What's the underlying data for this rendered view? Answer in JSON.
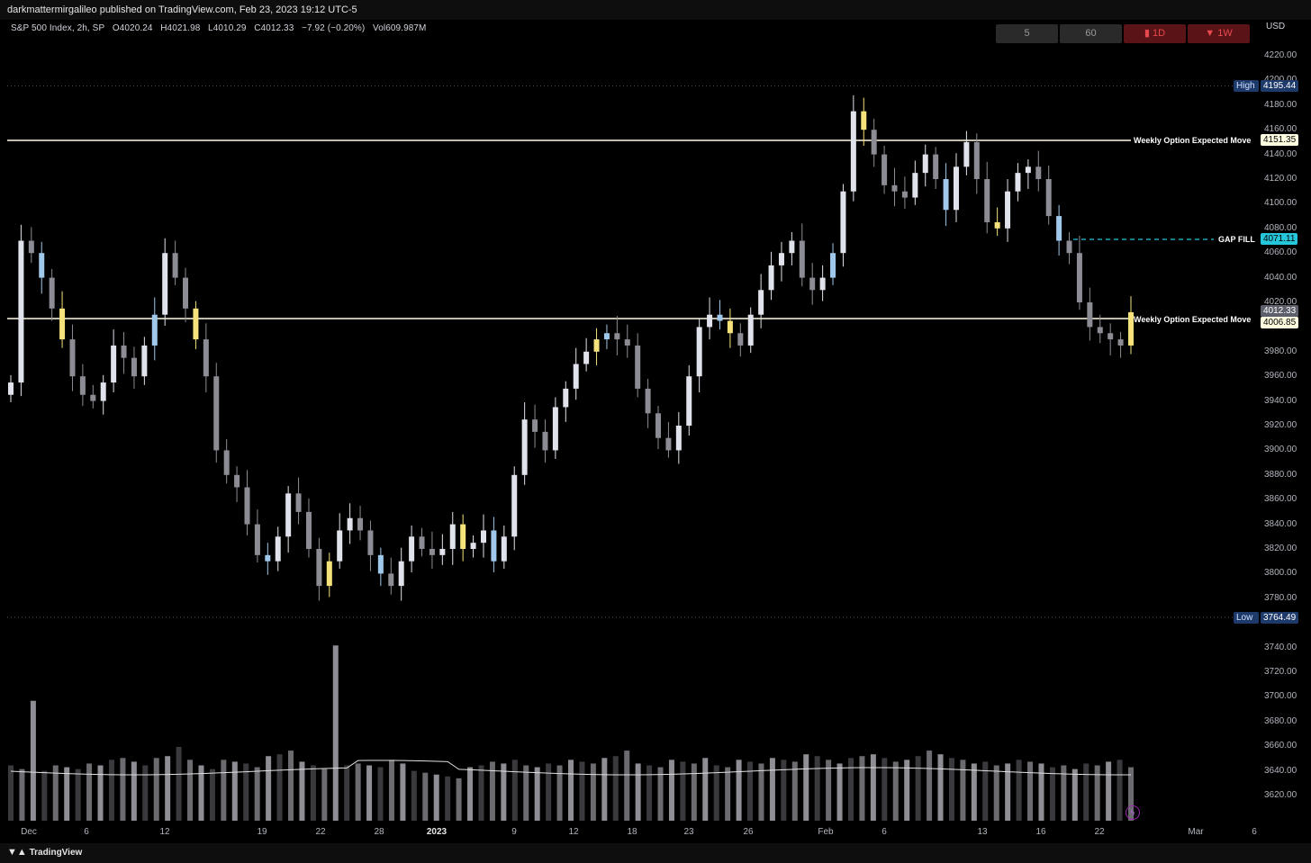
{
  "publish_bar": {
    "text": "darkmattermirgalileo published on TradingView.com, Feb 23, 2023 19:12 UTC-5"
  },
  "legend": {
    "symbol": "S&P 500 Index, 2h, SP",
    "open": "O4020.24",
    "high": "H4021.98",
    "low": "L4010.29",
    "close": "C4012.33",
    "change": "−7.92 (−0.20%)",
    "volume": "Vol609.987M"
  },
  "timeframes": [
    {
      "label": "5",
      "style": "gray"
    },
    {
      "label": "60",
      "style": "gray"
    },
    {
      "label": "▮ 1D",
      "style": "red"
    },
    {
      "label": "▼ 1W",
      "style": "red"
    }
  ],
  "currency": "USD",
  "price_axis": [
    "4220.00",
    "4200.00",
    "4180.00",
    "4160.00",
    "4140.00",
    "4120.00",
    "4100.00",
    "4080.00",
    "4060.00",
    "4040.00",
    "4020.00",
    "3980.00",
    "3960.00",
    "3940.00",
    "3920.00",
    "3900.00",
    "3880.00",
    "3860.00",
    "3840.00",
    "3820.00",
    "3800.00",
    "3780.00",
    "3740.00",
    "3720.00",
    "3700.00",
    "3680.00",
    "3660.00",
    "3640.00",
    "3620.00"
  ],
  "date_axis": [
    {
      "label": "Dec",
      "bold": false
    },
    {
      "label": "6",
      "bold": false
    },
    {
      "label": "12",
      "bold": false
    },
    {
      "label": "19",
      "bold": false
    },
    {
      "label": "22",
      "bold": false
    },
    {
      "label": "28",
      "bold": false
    },
    {
      "label": "2023",
      "bold": true
    },
    {
      "label": "9",
      "bold": false
    },
    {
      "label": "12",
      "bold": false
    },
    {
      "label": "18",
      "bold": false
    },
    {
      "label": "23",
      "bold": false
    },
    {
      "label": "26",
      "bold": false
    },
    {
      "label": "Feb",
      "bold": false
    },
    {
      "label": "6",
      "bold": false
    },
    {
      "label": "13",
      "bold": false
    },
    {
      "label": "16",
      "bold": false
    },
    {
      "label": "22",
      "bold": false
    },
    {
      "label": "Mar",
      "bold": false
    },
    {
      "label": "6",
      "bold": false
    }
  ],
  "levels": {
    "high": {
      "label": "High",
      "value": "4195.44"
    },
    "low": {
      "label": "Low",
      "value": "3764.49"
    },
    "upper_move": {
      "label": "Weekly Option Expected Move",
      "value": "4151.35"
    },
    "lower_move": {
      "label": "Weekly Option Expected Move",
      "value": "4006.85"
    },
    "gap_fill": {
      "label": "GAP FILL",
      "value": "4071.11"
    },
    "last_price": {
      "value": "4012.33"
    }
  },
  "colors": {
    "background": "#000000",
    "candle_up": "#e0e3eb",
    "candle_down": "#8c8c94",
    "candle_blue": "#9fc8ea",
    "candle_yellow": "#f5e27a",
    "gap_fill": "#26c6da",
    "move_line": "#fffde0"
  },
  "footer": {
    "brand": "TradingView"
  },
  "chart_data": {
    "type": "candlestick",
    "ylim": [
      3600,
      4230
    ],
    "close_path": [
      3955,
      4070,
      4060,
      4040,
      4015,
      3990,
      3960,
      3945,
      3940,
      3955,
      3985,
      3975,
      3960,
      3985,
      4010,
      4060,
      4040,
      4015,
      3990,
      3960,
      3900,
      3880,
      3870,
      3840,
      3815,
      3810,
      3830,
      3865,
      3850,
      3820,
      3790,
      3810,
      3835,
      3845,
      3835,
      3815,
      3800,
      3790,
      3810,
      3830,
      3820,
      3815,
      3820,
      3840,
      3820,
      3825,
      3835,
      3810,
      3830,
      3880,
      3925,
      3915,
      3900,
      3935,
      3950,
      3970,
      3980,
      3990,
      3995,
      3990,
      3985,
      3950,
      3930,
      3910,
      3900,
      3920,
      3960,
      4000,
      4010,
      4005,
      3995,
      3985,
      4010,
      4030,
      4050,
      4060,
      4070,
      4040,
      4030,
      4040,
      4060,
      4110,
      4175,
      4160,
      4140,
      4115,
      4110,
      4105,
      4125,
      4140,
      4120,
      4095,
      4130,
      4150,
      4120,
      4085,
      4080,
      4110,
      4125,
      4130,
      4120,
      4090,
      4070,
      4060,
      4020,
      4000,
      3995,
      3990,
      3985,
      4012
    ],
    "volume_scale_max": 100,
    "volume_path": [
      30,
      28,
      65,
      27,
      30,
      29,
      28,
      31,
      30,
      33,
      34,
      32,
      30,
      34,
      35,
      40,
      33,
      30,
      28,
      33,
      32,
      31,
      29,
      35,
      36,
      38,
      32,
      30,
      28,
      95,
      30,
      31,
      30,
      29,
      33,
      31,
      27,
      26,
      25,
      24,
      23,
      29,
      30,
      32,
      31,
      33,
      30,
      29,
      31,
      30,
      33,
      32,
      31,
      34,
      35,
      38,
      31,
      30,
      29,
      33,
      32,
      31,
      34,
      30,
      29,
      33,
      32,
      31,
      34,
      33,
      32,
      36,
      35,
      33,
      31,
      34,
      35,
      36,
      34,
      32,
      33,
      35,
      38,
      36,
      34,
      33,
      31,
      32,
      30,
      31,
      33,
      32,
      31,
      29,
      30,
      28,
      31,
      30,
      32,
      33,
      29
    ]
  }
}
